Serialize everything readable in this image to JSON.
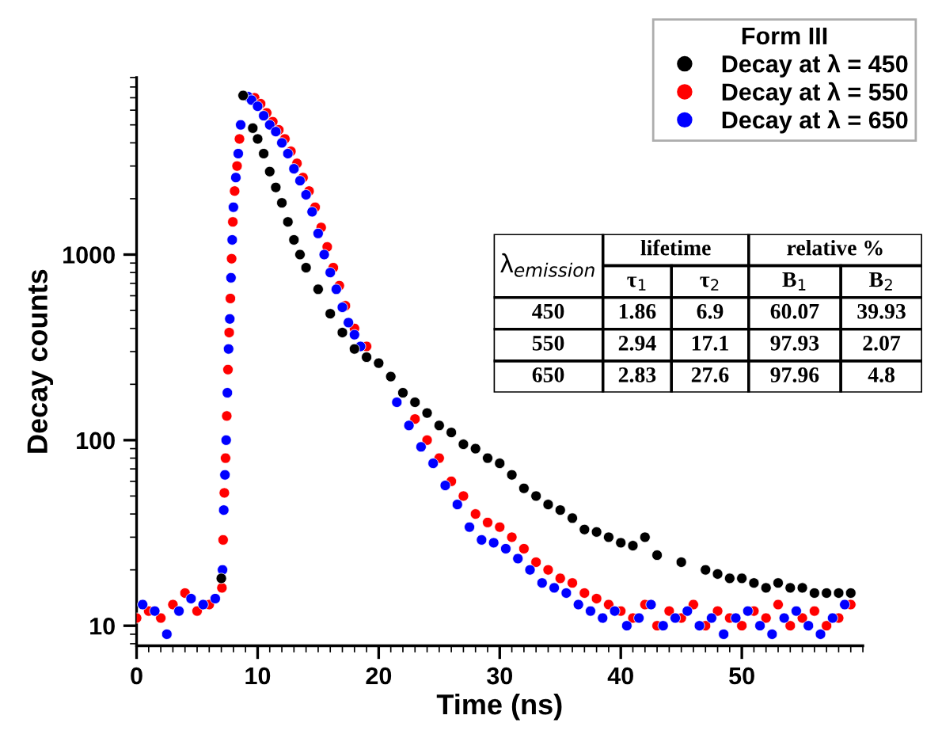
{
  "chart_data": [
    {
      "type": "scatter",
      "xlabel": "Time (ns)",
      "ylabel": "Decay counts",
      "legend_title": "Form III",
      "legend": "top right",
      "marker": "circle",
      "log": "y",
      "grid": false,
      "xlim": [
        0,
        60
      ],
      "xticks": [
        0,
        10,
        20,
        30,
        40,
        50
      ],
      "ylim": [
        7.8,
        9000
      ],
      "yticks": [
        10,
        100,
        1000
      ],
      "series": [
        {
          "name": "Decay at λ = 450",
          "color": "#000000",
          "x": [
            7.0,
            8.8,
            9.6,
            10,
            10.5,
            11,
            11.5,
            12,
            12.5,
            13,
            13.5,
            14,
            15,
            16,
            17,
            18,
            19,
            20,
            21,
            22,
            23,
            24,
            25,
            26,
            27,
            28,
            29,
            30,
            31,
            32,
            33,
            34,
            35,
            36,
            37,
            38,
            39,
            40,
            41,
            42,
            43,
            45,
            47,
            48,
            49,
            50,
            51,
            52,
            53,
            54,
            55,
            56,
            57,
            58,
            59
          ],
          "values": [
            18,
            7200,
            4800,
            4200,
            3500,
            2800,
            2300,
            1900,
            1500,
            1200,
            1000,
            850,
            650,
            480,
            380,
            310,
            280,
            260,
            220,
            180,
            160,
            140,
            120,
            110,
            95,
            90,
            80,
            75,
            65,
            55,
            50,
            45,
            42,
            38,
            33,
            32,
            30,
            28,
            27,
            30,
            24,
            22,
            20,
            19,
            18,
            18,
            17,
            16,
            17,
            16,
            16,
            15,
            15,
            15,
            15
          ]
        },
        {
          "name": "Decay at λ = 550",
          "color": "#ff0000",
          "x": [
            0,
            1,
            2,
            3,
            4,
            5,
            6,
            7.05,
            7.15,
            7.25,
            7.35,
            7.45,
            7.55,
            7.65,
            7.75,
            7.85,
            7.95,
            8.1,
            8.3,
            8.5,
            9.75,
            10.25,
            10.75,
            11.25,
            11.75,
            12.25,
            12.75,
            13.25,
            13.75,
            14.25,
            14.75,
            15.25,
            15.75,
            16.25,
            16.75,
            17.25,
            18,
            19,
            23,
            24,
            25,
            26,
            27,
            28,
            29,
            30,
            31,
            32,
            33,
            34,
            35,
            36,
            37,
            38,
            39,
            40,
            41,
            42,
            43,
            44,
            45,
            46,
            47,
            48,
            49,
            50,
            51,
            52,
            53,
            54,
            55,
            56,
            57,
            58,
            59
          ],
          "values": [
            11,
            12,
            11,
            13,
            15,
            12,
            13,
            16,
            29,
            52,
            80,
            135,
            240,
            380,
            580,
            950,
            1500,
            2200,
            3000,
            4200,
            7000,
            6500,
            5800,
            5200,
            4700,
            4200,
            3600,
            3100,
            2600,
            2200,
            1800,
            1400,
            1100,
            850,
            680,
            530,
            400,
            320,
            130,
            100,
            80,
            60,
            50,
            40,
            36,
            34,
            30,
            26,
            22,
            20,
            18,
            17,
            15,
            14,
            13,
            12,
            11,
            13,
            10,
            12,
            11,
            13,
            10,
            12,
            11,
            10,
            12,
            11,
            13,
            10,
            11,
            12,
            10,
            11,
            13
          ]
        },
        {
          "name": "Decay at λ = 650",
          "color": "#0000ff",
          "x": [
            0.5,
            1.5,
            2.5,
            3.5,
            4.5,
            5.5,
            6.5,
            7.1,
            7.2,
            7.3,
            7.4,
            7.5,
            7.6,
            7.7,
            7.8,
            7.9,
            8.0,
            8.2,
            8.4,
            8.6,
            9.2,
            9.5,
            10,
            10.5,
            11,
            11.5,
            12,
            12.5,
            13,
            13.5,
            14,
            14.5,
            15,
            15.5,
            16,
            16.5,
            17,
            17.5,
            18,
            18.5,
            19,
            21.5,
            22.5,
            23.5,
            24.5,
            25.5,
            26.5,
            27.5,
            28.5,
            29.5,
            30.5,
            31.5,
            32.5,
            33.5,
            34.5,
            35.5,
            36.5,
            37.5,
            38.5,
            39.5,
            40.5,
            41.5,
            42.5,
            43.5,
            44.5,
            45.5,
            46.5,
            47.5,
            48.5,
            49.5,
            50.5,
            51.5,
            52.5,
            53.5,
            54.5,
            55.5,
            56.5,
            57.5,
            58.5
          ],
          "values": [
            13,
            12,
            9,
            12,
            14,
            13,
            14,
            20,
            42,
            65,
            100,
            180,
            310,
            450,
            750,
            1200,
            1800,
            2600,
            3500,
            5000,
            7100,
            6800,
            6300,
            5600,
            5000,
            4600,
            4000,
            3500,
            2900,
            2500,
            2100,
            1700,
            1300,
            1000,
            800,
            650,
            520,
            430,
            370,
            320,
            null,
            160,
            120,
            92,
            75,
            57,
            45,
            34,
            29,
            28,
            26,
            23,
            20,
            17,
            16,
            15,
            13,
            12,
            11,
            12,
            10,
            11,
            13,
            10,
            11,
            12,
            10,
            11,
            9,
            11,
            12,
            10,
            9,
            11,
            12,
            10,
            9,
            11,
            13
          ]
        }
      ]
    },
    {
      "type": "other",
      "categories": [
        "λ$_{emission}$",
        "τ$_{1}$",
        "τ$_{2}$",
        "B$_{1}$",
        "B$_{2}$"
      ],
      "annotations": [
        "lifetime",
        "relative %"
      ],
      "y_categories": [
        "450",
        "550",
        "650"
      ],
      "cell_labels": [
        [
          "1.86",
          "6.9",
          "60.07",
          "39.93"
        ],
        [
          "2.94",
          "17.1",
          "97.93",
          "2.07"
        ],
        [
          "2.83",
          "27.6",
          "97.96",
          "4.8"
        ]
      ]
    }
  ]
}
